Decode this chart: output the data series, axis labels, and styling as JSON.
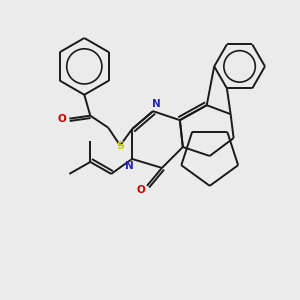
{
  "background_color": "#ebebeb",
  "bond_color": "#1a1a1a",
  "atom_colors": {
    "N": "#2222cc",
    "O": "#cc0000",
    "S": "#cccc00"
  },
  "line_width": 1.4,
  "figsize": [
    3.0,
    3.0
  ],
  "dpi": 100
}
